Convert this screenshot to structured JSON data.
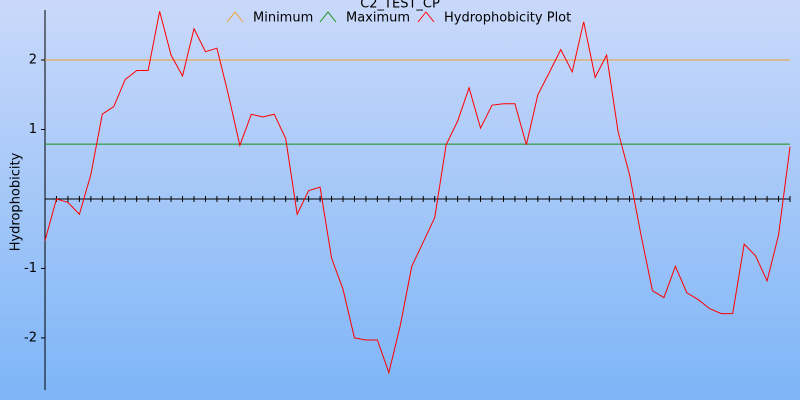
{
  "chart_data": {
    "type": "line",
    "title": "C2_TEST_CP",
    "y_label": "Hydrophobicity",
    "ylim": [
      -2.75,
      2.72
    ],
    "yticks": [
      -2,
      -1,
      1,
      2
    ],
    "series": [
      {
        "name": "Minimum",
        "color": "#f0a030",
        "value": 2
      },
      {
        "name": "Maximum",
        "color": "#159015",
        "value": 0.79
      },
      {
        "name": "Hydrophobicity Plot",
        "color": "#ff0000",
        "values": [
          -0.6,
          0,
          -0.05,
          -0.22,
          0.35,
          1.22,
          1.33,
          1.72,
          1.85,
          1.85,
          2.7,
          2.07,
          1.77,
          2.45,
          2.12,
          2.17,
          1.5,
          0.77,
          1.22,
          1.18,
          1.22,
          0.87,
          -0.22,
          0.12,
          0.17,
          -0.85,
          -1.3,
          -2,
          -2.03,
          -2.03,
          -2.5,
          -1.82,
          -0.97,
          -0.62,
          -0.27,
          0.78,
          1.12,
          1.6,
          1.02,
          1.35,
          1.37,
          1.37,
          0.78,
          1.5,
          1.82,
          2.15,
          1.83,
          2.55,
          1.75,
          2.07,
          0.97,
          0.35,
          -0.52,
          -1.32,
          -1.42,
          -0.97,
          -1.35,
          -1.45,
          -1.58,
          -1.65,
          -1.65,
          -0.65,
          -0.82,
          -1.18,
          -0.52,
          0.75
        ]
      }
    ]
  }
}
